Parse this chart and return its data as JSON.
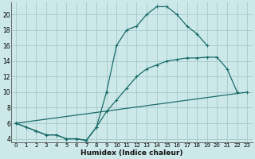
{
  "xlabel": "Humidex (Indice chaleur)",
  "bg_color": "#cce8e8",
  "grid_color": "#aacece",
  "line_color": "#1a6b6b",
  "xlim": [
    -0.5,
    23.5
  ],
  "ylim": [
    3.5,
    21.5
  ],
  "xticks": [
    0,
    1,
    2,
    3,
    4,
    5,
    6,
    7,
    8,
    9,
    10,
    11,
    12,
    13,
    14,
    15,
    16,
    17,
    18,
    19,
    20,
    21,
    22,
    23
  ],
  "yticks": [
    4,
    6,
    8,
    10,
    12,
    14,
    16,
    18,
    20
  ],
  "curve1": {
    "x": [
      0,
      1,
      2,
      3,
      4,
      5,
      6,
      7,
      8,
      9,
      10,
      11,
      12,
      13,
      14,
      15,
      16,
      17,
      18,
      19
    ],
    "y": [
      6,
      5.5,
      5,
      4.5,
      4.5,
      4.0,
      4.0,
      3.8,
      5.5,
      10,
      16,
      18,
      18.5,
      20,
      21,
      21,
      20,
      18.5,
      17.5,
      16
    ]
  },
  "curve2": {
    "x": [
      0,
      23
    ],
    "y": [
      6,
      10
    ]
  },
  "curve3": {
    "x": [
      0,
      1,
      2,
      3,
      4,
      5,
      6,
      7,
      8,
      9,
      10,
      11,
      12,
      13,
      14,
      15,
      16,
      17,
      18,
      19,
      20,
      21,
      22
    ],
    "y": [
      6,
      5.5,
      5,
      4.5,
      4.5,
      4.0,
      4.0,
      3.8,
      5.5,
      7.5,
      9.0,
      10.5,
      12.0,
      13.0,
      13.5,
      14.0,
      14.2,
      14.4,
      14.4,
      14.5,
      14.5,
      13.0,
      10
    ]
  }
}
